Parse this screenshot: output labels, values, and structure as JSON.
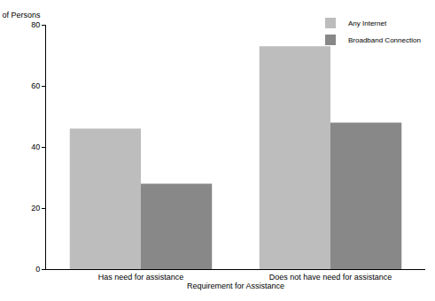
{
  "chart_data": {
    "type": "bar",
    "y_label": "% of Persons",
    "x_label": "Requirement for Assistance",
    "categories": [
      "Has need for assistance",
      "Does not have need for assistance"
    ],
    "series": [
      {
        "name": "Any Internet",
        "color": "#bdbdbd",
        "values": [
          46,
          73
        ]
      },
      {
        "name": "Broadband Connection",
        "color": "#888888",
        "values": [
          28,
          48
        ]
      }
    ],
    "ylim": [
      0,
      80
    ],
    "yticks": [
      0,
      20,
      40,
      60,
      80
    ],
    "grid": true,
    "legend": "top right"
  }
}
